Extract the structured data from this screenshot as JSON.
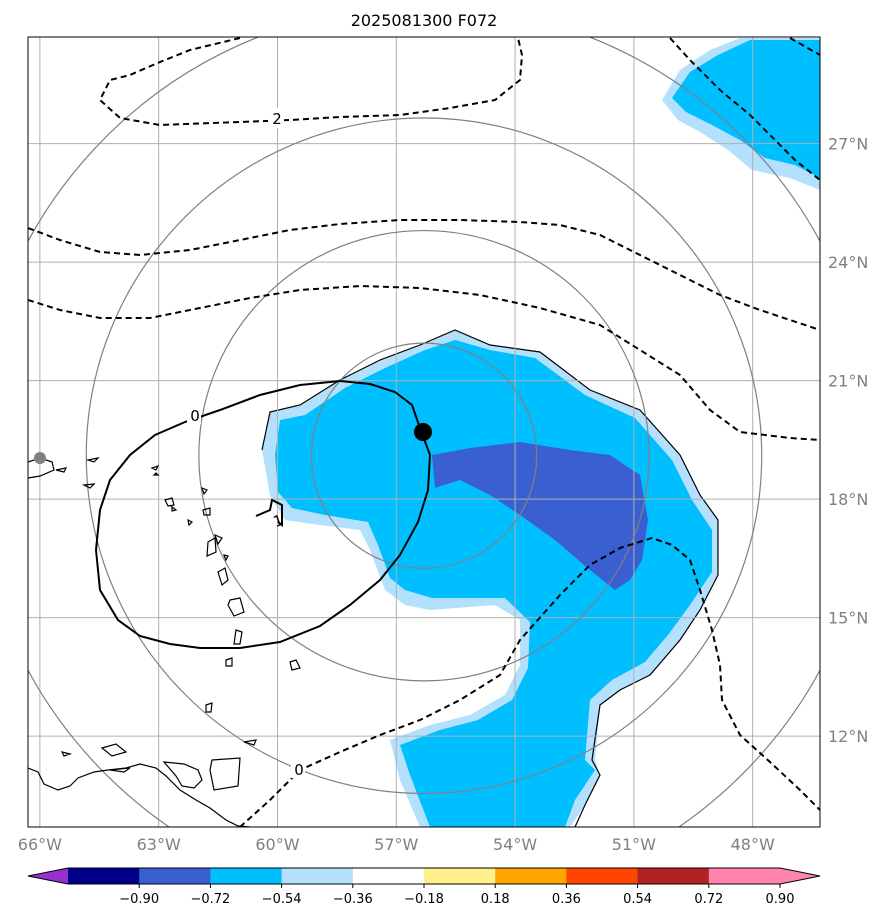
{
  "title": "2025081300 F072",
  "map": {
    "lon_ticks": [
      "66°W",
      "63°W",
      "60°W",
      "57°W",
      "54°W",
      "51°W",
      "48°W"
    ],
    "lat_ticks": [
      "27°N",
      "24°N",
      "21°N",
      "18°N",
      "15°N",
      "12°N"
    ],
    "extent": {
      "lon": [
        -66.3,
        -46.3
      ],
      "lat": [
        9.7,
        29.7
      ]
    },
    "storm_center": {
      "lon": -56.3,
      "lat": 19.1
    },
    "range_ring_count": 4,
    "contour_labels": [
      {
        "text": "2",
        "name": "contour-label-2"
      },
      {
        "text": "0",
        "name": "contour-label-0-north"
      },
      {
        "text": "1",
        "name": "contour-label-1"
      },
      {
        "text": "0",
        "name": "contour-label-0-south"
      }
    ],
    "colors": {
      "fill_light": "#b3e0fc",
      "fill_mid": "#00bfff",
      "fill_dark": "#3a5fd0"
    }
  },
  "colorbar": {
    "tick_labels": [
      "−0.90",
      "−0.72",
      "−0.54",
      "−0.36",
      "−0.18",
      "0.18",
      "0.36",
      "0.54",
      "0.72",
      "0.90"
    ],
    "colors": [
      "#9932cc",
      "#00008b",
      "#3a5fd0",
      "#00bfff",
      "#b3e0fc",
      "#ffffff",
      "#fff08c",
      "#ffa500",
      "#ff4500",
      "#b22222",
      "#ff85b0",
      "#ff85b0"
    ],
    "extend": "both"
  }
}
